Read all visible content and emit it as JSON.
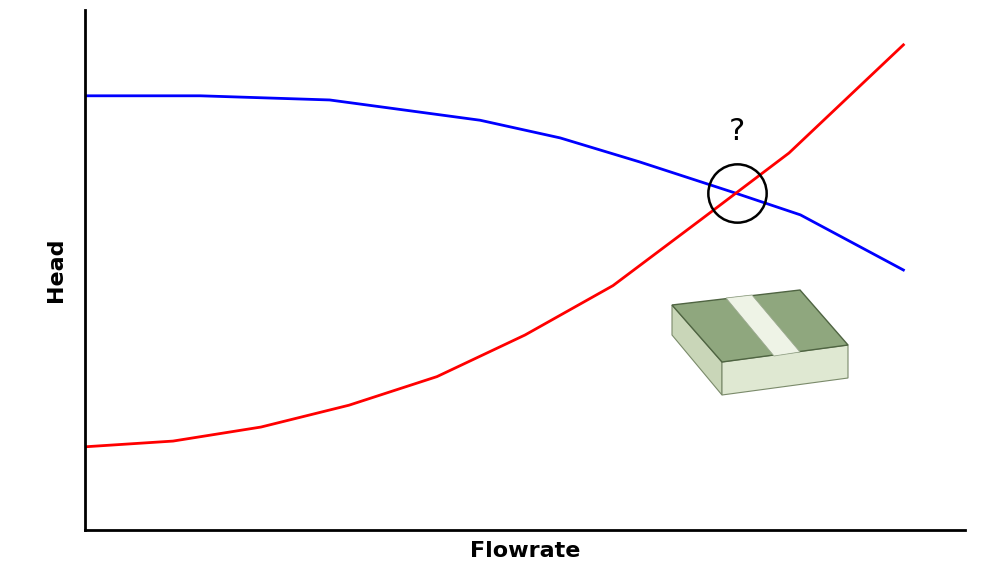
{
  "chart_data": {
    "type": "line",
    "x_label": "Flowrate",
    "y_label": "Head",
    "tick_labels": false,
    "xlim": [
      0,
      100
    ],
    "ylim": [
      0,
      100
    ],
    "xticks": [],
    "yticks": [],
    "series": [
      {
        "color": "#0000ff",
        "line_style": "solid",
        "x": [
          0,
          13.1,
          27.8,
          44.9,
          54,
          63,
          73.9,
          81.3,
          93
        ],
        "values": [
          83.5,
          83.5,
          82.7,
          78.8,
          75.4,
          70.8,
          64.8,
          60.6,
          50
        ]
      },
      {
        "color": "#ff0000",
        "line_style": "solid",
        "x": [
          0,
          10,
          20,
          30,
          40,
          50,
          60,
          70,
          80,
          93
        ],
        "values": [
          16.0,
          17.1,
          19.8,
          24,
          29.5,
          37.5,
          47,
          59.7,
          72.5,
          93.3
        ]
      }
    ],
    "annotations": [
      {
        "text": "?",
        "x": 74.1,
        "y": 64.8
      }
    ]
  }
}
